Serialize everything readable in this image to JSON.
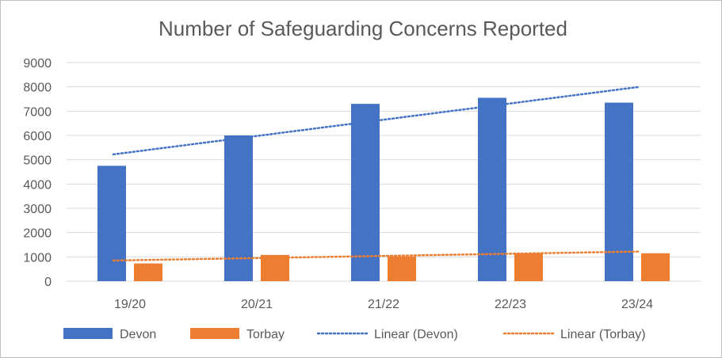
{
  "chart_data": {
    "type": "bar",
    "title": "Number of Safeguarding Concerns Reported",
    "categories": [
      "19/20",
      "20/21",
      "21/22",
      "22/23",
      "23/24"
    ],
    "ylim": [
      0,
      9000
    ],
    "yticks": [
      0,
      1000,
      2000,
      3000,
      4000,
      5000,
      6000,
      7000,
      8000,
      9000
    ],
    "grid": true,
    "legend_position": "bottom",
    "series": [
      {
        "name": "Devon",
        "values": [
          4750,
          6000,
          7300,
          7550,
          7350
        ],
        "color": "#4472C4"
      },
      {
        "name": "Torbay",
        "values": [
          730,
          1080,
          1020,
          1150,
          1150
        ],
        "color": "#ED7D31"
      }
    ],
    "trendlines": [
      {
        "name": "Linear (Devon)",
        "series": "Devon",
        "start": 5220,
        "end": 8000,
        "color": "#4472C4",
        "style": "dotted"
      },
      {
        "name": "Linear (Torbay)",
        "series": "Torbay",
        "start": 850,
        "end": 1220,
        "color": "#ED7D31",
        "style": "dotted"
      }
    ]
  }
}
